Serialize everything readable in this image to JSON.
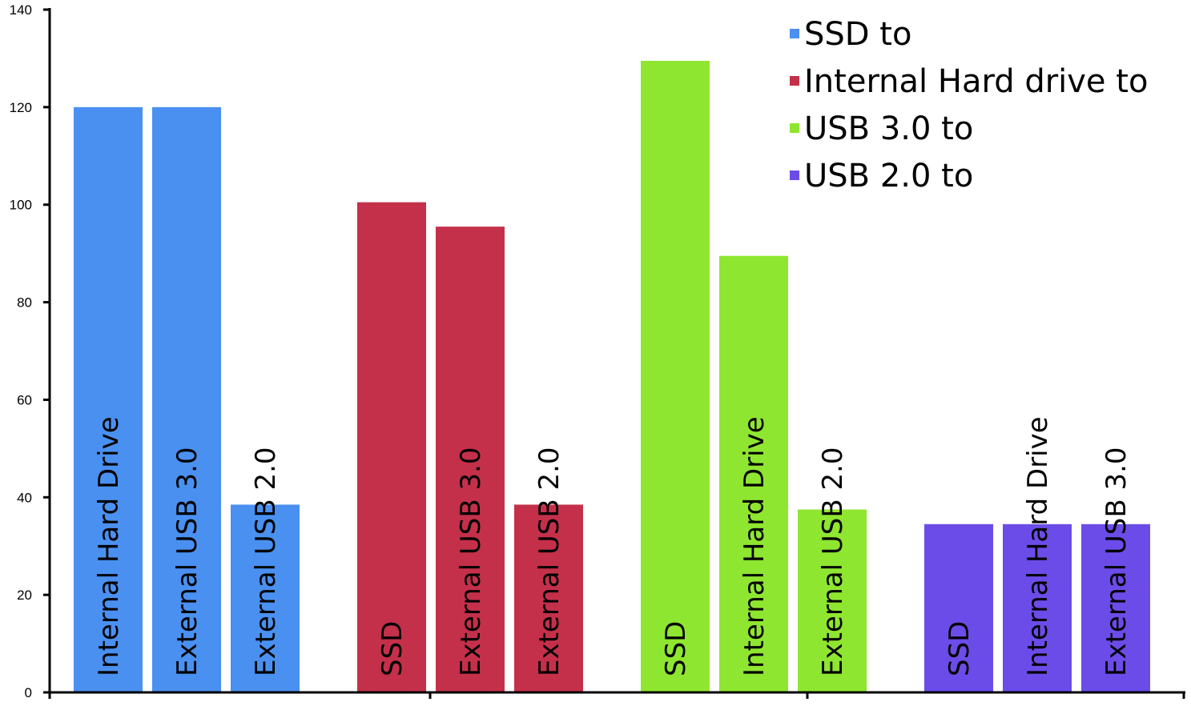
{
  "chart_data": {
    "type": "bar",
    "title": "",
    "xlabel": "",
    "ylabel": "",
    "ylim": [
      0,
      140
    ],
    "yticks": [
      0,
      20,
      40,
      60,
      80,
      100,
      120,
      140
    ],
    "grid": false,
    "legend_position": "top-right",
    "series": [
      {
        "name": "SSD to",
        "color": "#4a90f0",
        "bars": [
          {
            "label": "Internal Hard Drive",
            "value": 120
          },
          {
            "label": "External USB 3.0",
            "value": 120
          },
          {
            "label": "External USB 2.0",
            "value": 38.5
          }
        ]
      },
      {
        "name": "Internal Hard drive to",
        "color": "#c4304a",
        "bars": [
          {
            "label": "SSD",
            "value": 100.5
          },
          {
            "label": "External USB 3.0",
            "value": 95.5
          },
          {
            "label": "External USB 2.0",
            "value": 38.5
          }
        ]
      },
      {
        "name": "USB 3.0 to",
        "color": "#8fe630",
        "bars": [
          {
            "label": "SSD",
            "value": 129.5
          },
          {
            "label": "Internal Hard Drive",
            "value": 89.5
          },
          {
            "label": "External USB 2.0",
            "value": 37.5
          }
        ]
      },
      {
        "name": "USB 2.0 to",
        "color": "#6c4ce8",
        "bars": [
          {
            "label": "SSD",
            "value": 34.5
          },
          {
            "label": "Internal Hard Drive",
            "value": 34.5
          },
          {
            "label": "External USB 3.0",
            "value": 34.5
          }
        ]
      }
    ]
  }
}
